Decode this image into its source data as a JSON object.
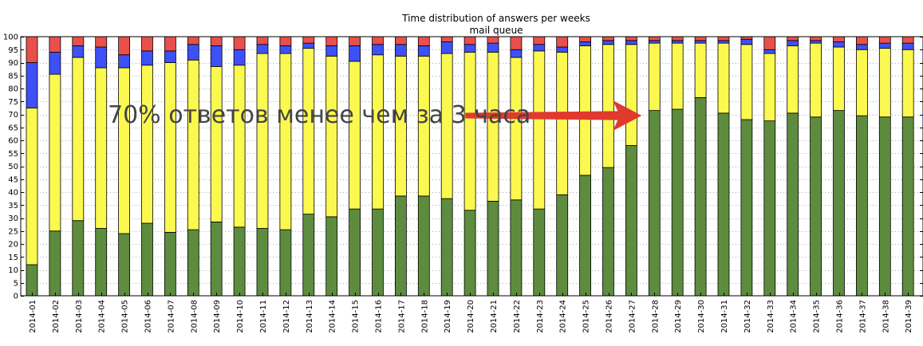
{
  "chart_data": {
    "type": "bar",
    "stacked": true,
    "title": "Time distribution of answers per weeks",
    "subtitle": "mail queue",
    "xlabel": "",
    "ylabel": "",
    "ylim": [
      0,
      100
    ],
    "yticks": [
      0,
      5,
      10,
      15,
      20,
      25,
      30,
      35,
      40,
      45,
      50,
      55,
      60,
      65,
      70,
      75,
      80,
      85,
      90,
      95,
      100
    ],
    "grid": true,
    "categories": [
      "2014-01",
      "2014-02",
      "2014-03",
      "2014-04",
      "2014-05",
      "2014-06",
      "2014-07",
      "2014-08",
      "2014-09",
      "2014-10",
      "2014-11",
      "2014-12",
      "2014-13",
      "2014-14",
      "2014-15",
      "2014-16",
      "2014-17",
      "2014-18",
      "2014-19",
      "2014-20",
      "2014-21",
      "2014-22",
      "2014-23",
      "2014-24",
      "2014-25",
      "2014-26",
      "2014-27",
      "2014-28",
      "2014-29",
      "2014-30",
      "2014-31",
      "2014-32",
      "2014-33",
      "2014-34",
      "2014-35",
      "2014-36",
      "2014-37",
      "2014-38",
      "2014-39"
    ],
    "series": [
      {
        "name": "green",
        "color": "#5e8c3e",
        "values": [
          12,
          25,
          29,
          26,
          24,
          28,
          24.5,
          25.5,
          28.5,
          26.5,
          26,
          25.5,
          31.5,
          30.5,
          33.5,
          33.5,
          38.5,
          38.5,
          37.5,
          33,
          36.5,
          37,
          33.5,
          39,
          46.5,
          49.5,
          58,
          71.5,
          72,
          76.5,
          70.5,
          68,
          67.5,
          70.5,
          69,
          71.5,
          69.5,
          69,
          69
        ]
      },
      {
        "name": "yellow",
        "color": "#fbf84f",
        "values": [
          60.5,
          60.5,
          63,
          62,
          64,
          61,
          65.5,
          65.5,
          60,
          62.5,
          67.5,
          68,
          64,
          62,
          57,
          59.5,
          54,
          54,
          56,
          61,
          57.5,
          55,
          61,
          55,
          50,
          47.5,
          39,
          26,
          25.5,
          21,
          27,
          29,
          26,
          26,
          28.5,
          24.5,
          25.5,
          26.5,
          26
        ]
      },
      {
        "name": "blue",
        "color": "#3e50f8",
        "values": [
          17.5,
          8.5,
          4.5,
          8,
          5,
          5.5,
          4.5,
          6,
          8,
          6,
          3.5,
          3,
          2,
          4,
          6,
          4,
          4.5,
          4,
          4.5,
          3,
          3.5,
          3,
          2.5,
          2,
          1.5,
          1.5,
          1.5,
          1,
          1,
          1,
          1,
          2,
          1.5,
          2,
          1,
          2,
          2,
          2,
          2.5
        ]
      },
      {
        "name": "red",
        "color": "#e9504c",
        "values": [
          10,
          6.5,
          3.5,
          4,
          7,
          5.5,
          5.5,
          3,
          3.5,
          5,
          3,
          3.5,
          2.5,
          3.5,
          3.5,
          3,
          3,
          3.5,
          2,
          3,
          2.5,
          5,
          3,
          4,
          2,
          1.5,
          1.5,
          1.5,
          1.5,
          1.5,
          1.5,
          1,
          5,
          1.5,
          1.5,
          2,
          3,
          2.5,
          2.5
        ]
      }
    ],
    "annotations": [
      {
        "text": "70% ответов менее чем за 3 часа",
        "color": "#444444",
        "arrow_color": "#e0392d",
        "arrow_from_category": "2014-19",
        "arrow_to_category": "2014-28",
        "arrow_value": 70
      }
    ]
  }
}
